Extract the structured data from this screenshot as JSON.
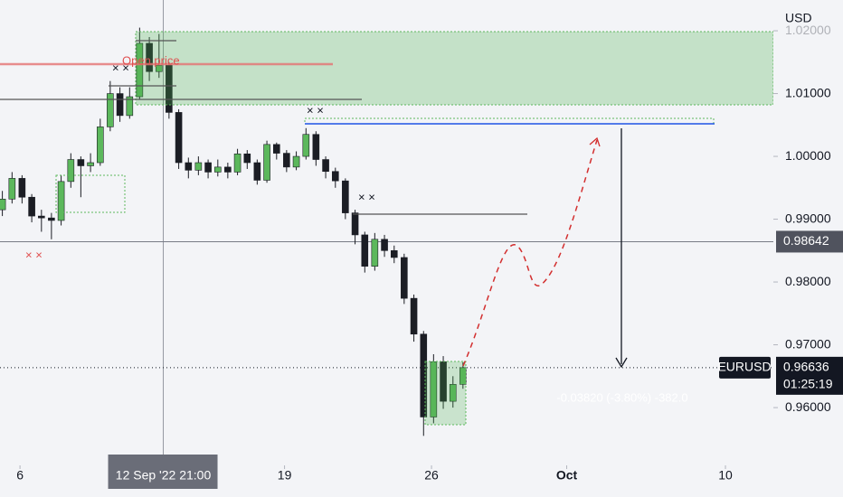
{
  "chart_data": {
    "type": "candlestick",
    "symbol": "EURUSD",
    "currency": "USD",
    "x": [
      -0.6,
      -0.27,
      0.07,
      0.4,
      0.73,
      1.07,
      1.4,
      1.73,
      2.07,
      2.4,
      2.73,
      3.07,
      3.4,
      3.73,
      4.07,
      4.4,
      4.73,
      5.07,
      5.4,
      5.73,
      6.07,
      6.4,
      6.73,
      7.07,
      7.4,
      7.73,
      8.07,
      8.4,
      8.73,
      9.07,
      9.4,
      9.73,
      10.07,
      10.4,
      10.73,
      11.07,
      11.4,
      11.73,
      12.07,
      12.4,
      12.73,
      13.07,
      13.4,
      13.73,
      14.07,
      14.4,
      14.73,
      15.07
    ],
    "open": [
      0.9915,
      0.9932,
      0.9965,
      0.9935,
      0.9905,
      0.9902,
      0.9898,
      0.996,
      0.9995,
      0.9985,
      0.999,
      1.0047,
      1.01,
      1.0065,
      1.0095,
      1.018,
      1.0135,
      1.0145,
      1.007,
      0.999,
      0.9978,
      0.999,
      0.9975,
      0.9983,
      0.9975,
      1.0004,
      0.999,
      0.9962,
      1.0019,
      1.0005,
      0.9983,
      1.0,
      1.0035,
      0.9995,
      0.9976,
      0.9961,
      0.991,
      0.9875,
      0.9825,
      0.9868,
      0.985,
      0.9839,
      0.9774,
      0.9717,
      0.9585,
      0.9673,
      0.961,
      0.9637
    ],
    "high": [
      0.9945,
      0.9975,
      0.997,
      0.994,
      0.9915,
      0.991,
      0.997,
      1.0005,
      1.0,
      1.0005,
      1.006,
      1.012,
      1.011,
      1.011,
      1.0205,
      1.019,
      1.0195,
      1.015,
      1.0075,
      0.9998,
      1.0,
      0.9995,
      0.9995,
      0.999,
      1.0012,
      1.001,
      0.9995,
      1.0025,
      1.0022,
      1.001,
      1.0008,
      1.0045,
      1.004,
      1.0,
      0.9982,
      0.9965,
      0.9915,
      0.988,
      0.9878,
      0.9875,
      0.9858,
      0.9845,
      0.978,
      0.9722,
      0.9685,
      0.9682,
      0.965,
      0.9672
    ],
    "low": [
      0.9905,
      0.9925,
      0.9925,
      0.9895,
      0.988,
      0.9868,
      0.989,
      0.995,
      0.9935,
      0.9975,
      0.9985,
      1.004,
      1.0055,
      1.006,
      1.009,
      1.012,
      1.0125,
      1.006,
      0.998,
      0.9965,
      0.997,
      0.9965,
      0.9968,
      0.9965,
      0.997,
      0.998,
      0.9955,
      0.9958,
      0.9995,
      0.9975,
      0.9978,
      0.9995,
      0.9985,
      0.9965,
      0.995,
      0.99,
      0.986,
      0.9815,
      0.9818,
      0.984,
      0.983,
      0.9765,
      0.9705,
      0.9555,
      0.9575,
      0.9598,
      0.96,
      0.963
    ],
    "close": [
      0.9932,
      0.9965,
      0.9935,
      0.9905,
      0.9902,
      0.9898,
      0.996,
      0.9995,
      0.9985,
      0.999,
      1.0047,
      1.01,
      1.0065,
      1.0095,
      1.018,
      1.0135,
      1.0145,
      1.007,
      0.999,
      0.9978,
      0.999,
      0.9975,
      0.9983,
      0.9975,
      1.0004,
      0.999,
      0.9962,
      1.0019,
      1.0005,
      0.9983,
      1.0,
      1.0035,
      0.9995,
      0.9976,
      0.9961,
      0.991,
      0.9875,
      0.9825,
      0.9868,
      0.985,
      0.9839,
      0.9774,
      0.9717,
      0.9585,
      0.9673,
      0.961,
      0.9637,
      0.96636
    ],
    "up_color": "#5cb85c",
    "down_color": "#1b1d24",
    "xlim": [
      -0.68,
      25.63
    ],
    "ylim": [
      0.9508,
      1.0249
    ],
    "xticks": [
      {
        "value": 0,
        "label": "6"
      },
      {
        "value": 9,
        "label": "19"
      },
      {
        "value": 14,
        "label": "26"
      },
      {
        "value": 18.6,
        "label": "Oct"
      },
      {
        "value": 24,
        "label": "10"
      }
    ],
    "yticks": [
      {
        "value": 0.96,
        "label": "0.96000"
      },
      {
        "value": 0.97,
        "label": "0.97000"
      },
      {
        "value": 0.98,
        "label": "0.98000"
      },
      {
        "value": 0.99,
        "label": "0.99000"
      },
      {
        "value": 1.0,
        "label": "1.00000"
      },
      {
        "value": 1.01,
        "label": "1.01000"
      },
      {
        "value": 1.02,
        "label": "1.02000"
      }
    ],
    "crosshair": {
      "value": 4.875,
      "label": "12 Sep '22  21:00"
    },
    "horizontal_line": {
      "value": 0.98642,
      "label": "0.98642"
    },
    "last_price": {
      "value": 0.96636,
      "label": "0.96636"
    },
    "countdown": "01:25:19",
    "annotations": [
      "Open price",
      "× ×",
      "× ×",
      "× ×",
      "× ×"
    ],
    "measure_label": "-0.03820 (-3.80%) -382.0"
  }
}
